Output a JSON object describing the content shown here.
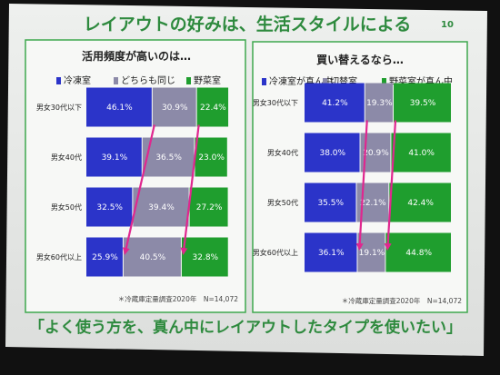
{
  "slide": {
    "title": "レイアウトの好みは、生活スタイルによる",
    "page_number": "10",
    "footer_message": "「よく使う方を、真ん中にレイアウトしたタイプを使いたい」"
  },
  "colors": {
    "blue": "#2b34c9",
    "gray": "#8c8aa8",
    "green": "#1f9e2e",
    "accent": "#2e8a3e",
    "arrow": "#e0278f"
  },
  "chart_data": [
    {
      "type": "bar",
      "stacked": true,
      "orientation": "horizontal",
      "title": "活用頻度が高いのは…",
      "categories": [
        "男女30代以下",
        "男女40代",
        "男女50代",
        "男女60代以上"
      ],
      "series": [
        {
          "name": "冷凍室",
          "color": "#2b34c9",
          "values": [
            46.1,
            39.1,
            32.5,
            25.9
          ],
          "labels": [
            "46.1%",
            "39.1%",
            "32.5%",
            "25.9%"
          ]
        },
        {
          "name": "どちらも同じ",
          "color": "#8c8aa8",
          "values": [
            30.9,
            36.5,
            39.4,
            40.5
          ],
          "labels": [
            "30.9%",
            "36.5%",
            "39.4%",
            "40.5%"
          ]
        },
        {
          "name": "野菜室",
          "color": "#1f9e2e",
          "values": [
            22.4,
            23.0,
            27.2,
            32.8
          ],
          "labels": [
            "22.4%",
            "23.0%",
            "27.2%",
            "32.8%"
          ]
        }
      ],
      "xlim": [
        0,
        100
      ],
      "legend_position": "top",
      "grid": false,
      "note": "＊冷蔵庫定量調査2020年　N=14,072"
    },
    {
      "type": "bar",
      "stacked": true,
      "orientation": "horizontal",
      "title": "買い替えるなら…",
      "categories": [
        "男女30代以下",
        "男女40代",
        "男女50代",
        "男女60代以上"
      ],
      "series": [
        {
          "name": "冷凍室が真ん中",
          "color": "#2b34c9",
          "values": [
            41.2,
            38.0,
            35.5,
            36.1
          ],
          "labels": [
            "41.2%",
            "38.0%",
            "35.5%",
            "36.1%"
          ]
        },
        {
          "name": "切替室",
          "color": "#8c8aa8",
          "values": [
            19.3,
            20.9,
            22.1,
            19.1
          ],
          "labels": [
            "19.3%",
            "20.9%",
            "22.1%",
            "19.1%"
          ]
        },
        {
          "name": "野菜室が真ん中",
          "color": "#1f9e2e",
          "values": [
            39.5,
            41.0,
            42.4,
            44.8
          ],
          "labels": [
            "39.5%",
            "41.0%",
            "42.4%",
            "44.8%"
          ]
        }
      ],
      "xlim": [
        0,
        100
      ],
      "legend_position": "top",
      "grid": false,
      "note": "＊冷蔵庫定量調査2020年　N=14,072"
    }
  ]
}
